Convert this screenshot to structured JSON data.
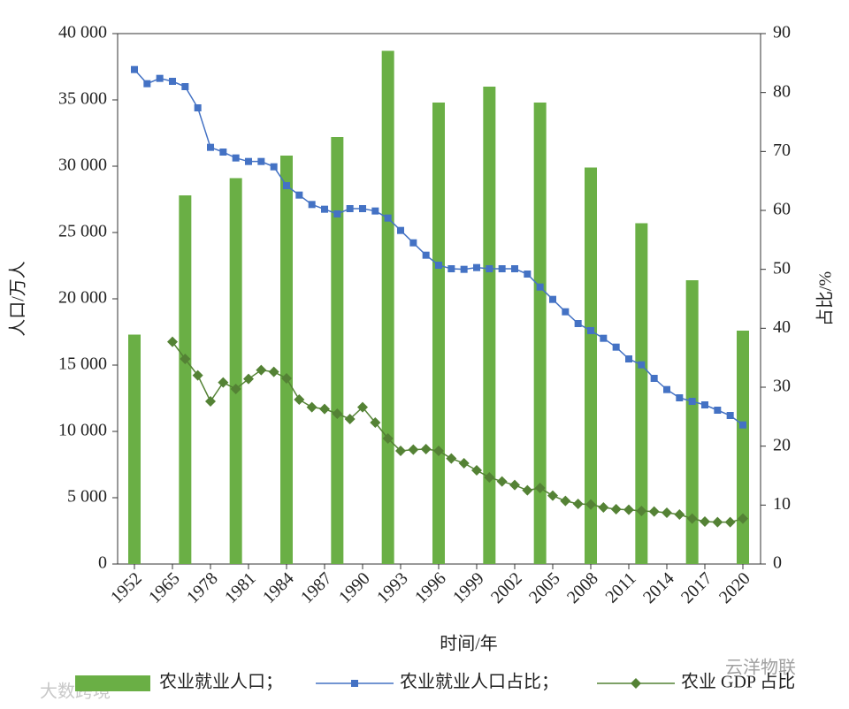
{
  "chart_data": {
    "type": "bar_line",
    "xlabel": "时间/年",
    "ylabel": "人口/万人",
    "y2label": "占比/%",
    "categories": [
      "1952",
      null,
      null,
      "1965",
      null,
      null,
      "1978",
      null,
      null,
      "1981",
      null,
      null,
      "1984",
      null,
      null,
      "1987",
      null,
      null,
      "1990",
      null,
      null,
      "1993",
      null,
      null,
      "1996",
      null,
      null,
      "1999",
      null,
      null,
      "2002",
      null,
      null,
      "2005",
      null,
      null,
      "2008",
      null,
      null,
      "2011",
      null,
      null,
      "2014",
      null,
      null,
      "2017",
      null,
      null,
      "2020"
    ],
    "series": [
      {
        "name": "农业就业人口；",
        "kind": "bar",
        "color": "#6aaf45",
        "axis": "y",
        "values": [
          17300,
          null,
          null,
          null,
          27800,
          null,
          null,
          null,
          29100,
          null,
          null,
          null,
          30800,
          null,
          null,
          null,
          32200,
          null,
          null,
          null,
          38700,
          null,
          null,
          null,
          34800,
          null,
          null,
          null,
          36000,
          null,
          null,
          null,
          34800,
          null,
          null,
          null,
          29900,
          null,
          null,
          null,
          25700,
          null,
          null,
          null,
          21400,
          null,
          null,
          null,
          17600
        ]
      },
      {
        "name": "农业就业人口占比；",
        "kind": "line",
        "marker": "square",
        "color": "#4472c4",
        "axis": "y2",
        "values": [
          83.9,
          81.5,
          82.4,
          81.9,
          81,
          77.4,
          70.7,
          69.9,
          68.9,
          68.3,
          68.3,
          67.4,
          64.2,
          62.6,
          61,
          60.2,
          59.4,
          60.3,
          60.3,
          59.9,
          58.7,
          56.6,
          54.5,
          52.4,
          50.7,
          50.1,
          50,
          50.3,
          50.1,
          50.1,
          50.1,
          49.2,
          47,
          44.9,
          42.8,
          40.8,
          39.6,
          38.3,
          36.8,
          34.8,
          33.8,
          31.5,
          29.6,
          28.2,
          27.6,
          27,
          26.1,
          25.2,
          23.6
        ]
      },
      {
        "name": "农业 GDP 占比",
        "kind": "line",
        "marker": "diamond",
        "color": "#548235",
        "axis": "y2",
        "values": [
          null,
          null,
          null,
          37.7,
          34.8,
          32,
          27.6,
          30.8,
          29.7,
          31.4,
          32.9,
          32.6,
          31.5,
          27.9,
          26.6,
          26.3,
          25.5,
          24.6,
          26.6,
          24,
          21.3,
          19.2,
          19.4,
          19.5,
          19.2,
          17.9,
          17.1,
          15.9,
          14.7,
          14,
          13.4,
          12.5,
          12.9,
          11.6,
          10.7,
          10.2,
          10.1,
          9.6,
          9.3,
          9.2,
          9,
          8.9,
          8.7,
          8.4,
          7.7,
          7.2,
          7.1,
          7.1,
          7.7
        ]
      }
    ],
    "ylim": [
      0,
      40000
    ],
    "yticks": [
      0,
      {
        "value": 5000,
        "label": "5 000"
      },
      {
        "value": 10000,
        "label": "10 000"
      },
      {
        "value": 15000,
        "label": "15 000"
      },
      {
        "value": 20000,
        "label": "20 000"
      },
      {
        "value": 25000,
        "label": "25 000"
      },
      {
        "value": 30000,
        "label": "30 000"
      },
      {
        "value": 35000,
        "label": "35 000"
      },
      {
        "value": 40000,
        "label": "40 000"
      }
    ],
    "y2lim": [
      0,
      90
    ],
    "y2ticks": [
      0,
      10,
      20,
      30,
      40,
      50,
      60,
      70,
      80,
      90
    ],
    "legend": "bottom",
    "watermarks": [
      "大数跨境",
      "云洋物联"
    ]
  }
}
